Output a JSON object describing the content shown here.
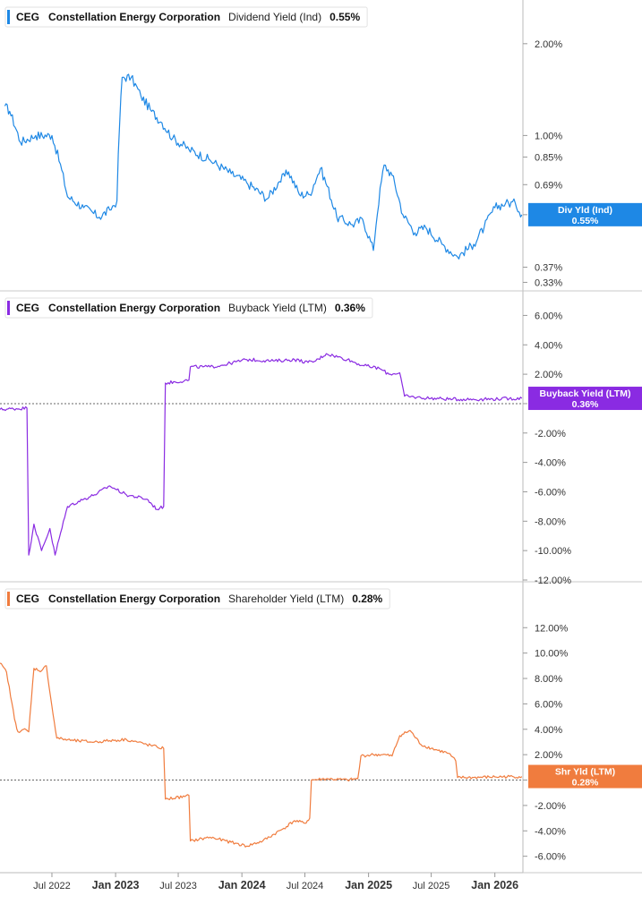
{
  "chart_data": [
    {
      "type": "line",
      "ticker": "CEG",
      "company": "Constellation Energy Corporation",
      "metric": "Dividend Yield (Ind)",
      "value_label": "0.55%",
      "color": "#1e88e5",
      "y_scale": "log",
      "ylim": [
        0.32,
        2.6
      ],
      "ytick_values": [
        2.0,
        1.0,
        0.85,
        0.69,
        0.55,
        0.37,
        0.33
      ],
      "ytick_labels": [
        "2.00%",
        "1.00%",
        "0.85%",
        "0.69%",
        "0.55%",
        "0.37%",
        "0.33%"
      ],
      "badge_lines": [
        "Div Yld (Ind)",
        "0.55%"
      ],
      "zero_line": false,
      "x": [
        "2022-02-15",
        "2022-03-01",
        "2022-04-01",
        "2022-05-15",
        "2022-07-01",
        "2022-08-15",
        "2022-10-01",
        "2022-11-15",
        "2022-12-15",
        "2023-01-05",
        "2023-01-20",
        "2023-02-15",
        "2023-03-15",
        "2023-04-15",
        "2023-05-15",
        "2023-06-15",
        "2023-08-01",
        "2023-10-01",
        "2023-12-01",
        "2024-01-15",
        "2024-03-15",
        "2024-04-15",
        "2024-05-15",
        "2024-06-15",
        "2024-07-15",
        "2024-08-15",
        "2024-10-01",
        "2024-11-15",
        "2024-12-15",
        "2025-01-15",
        "2025-02-15",
        "2025-03-10",
        "2025-04-10",
        "2025-05-15",
        "2025-06-15",
        "2025-08-01",
        "2025-09-15",
        "2025-11-01",
        "2025-12-01",
        "2026-01-01",
        "2026-02-01",
        "2026-03-01",
        "2026-03-20"
      ],
      "values": [
        1.25,
        1.2,
        0.95,
        1.0,
        1.0,
        0.63,
        0.58,
        0.54,
        0.57,
        0.61,
        1.55,
        1.55,
        1.35,
        1.2,
        1.1,
        0.98,
        0.9,
        0.83,
        0.75,
        0.7,
        0.62,
        0.7,
        0.76,
        0.64,
        0.64,
        0.78,
        0.54,
        0.51,
        0.53,
        0.42,
        0.8,
        0.74,
        0.55,
        0.48,
        0.5,
        0.44,
        0.4,
        0.44,
        0.5,
        0.58,
        0.6,
        0.6,
        0.55
      ]
    },
    {
      "type": "line",
      "ticker": "CEG",
      "company": "Constellation Energy Corporation",
      "metric": "Buyback Yield (LTM)",
      "value_label": "0.36%",
      "color": "#8a2be2",
      "y_scale": "linear",
      "ylim": [
        -12.0,
        7.0
      ],
      "ytick_values": [
        6,
        4,
        2,
        0,
        -2,
        -4,
        -6,
        -8,
        -10,
        -12
      ],
      "ytick_labels": [
        "6.00%",
        "4.00%",
        "2.00%",
        "0.00%",
        "-2.00%",
        "-4.00%",
        "-6.00%",
        "-8.00%",
        "-10.00%",
        "-12.00%"
      ],
      "badge_lines": [
        "Buyback Yield (LTM)",
        "0.36%"
      ],
      "zero_line": true,
      "x": [
        "2022-02-01",
        "2022-04-20",
        "2022-04-25",
        "2022-05-10",
        "2022-06-01",
        "2022-06-25",
        "2022-07-10",
        "2022-08-15",
        "2022-10-01",
        "2022-11-01",
        "2022-12-15",
        "2023-02-01",
        "2023-04-01",
        "2023-05-01",
        "2023-05-20",
        "2023-05-25",
        "2023-08-01",
        "2023-08-05",
        "2023-10-01",
        "2023-11-01",
        "2024-01-15",
        "2024-04-01",
        "2024-06-01",
        "2024-07-10",
        "2024-08-01",
        "2024-09-01",
        "2024-11-01",
        "2024-12-15",
        "2025-02-01",
        "2025-03-01",
        "2025-04-01",
        "2025-04-15",
        "2025-06-01",
        "2025-09-01",
        "2025-12-01",
        "2026-03-20"
      ],
      "values": [
        -0.4,
        -0.3,
        -10.3,
        -8.2,
        -10.0,
        -8.5,
        -10.3,
        -7.0,
        -6.5,
        -6.2,
        -5.6,
        -6.2,
        -6.5,
        -7.2,
        -7.0,
        1.4,
        1.6,
        2.5,
        2.5,
        2.6,
        3.0,
        2.9,
        3.0,
        2.8,
        2.9,
        3.4,
        3.0,
        2.6,
        2.4,
        2.0,
        2.1,
        0.5,
        0.4,
        0.3,
        0.3,
        0.36
      ]
    },
    {
      "type": "line",
      "ticker": "CEG",
      "company": "Constellation Energy Corporation",
      "metric": "Shareholder Yield (LTM)",
      "value_label": "0.28%",
      "color": "#f07c3e",
      "y_scale": "linear",
      "ylim": [
        -6.8,
        13.5
      ],
      "ytick_values": [
        12,
        10,
        8,
        6,
        4,
        2,
        0,
        -2,
        -4,
        -6
      ],
      "ytick_labels": [
        "12.00%",
        "10.00%",
        "8.00%",
        "6.00%",
        "4.00%",
        "2.00%",
        "0.00%",
        "-2.00%",
        "-4.00%",
        "-6.00%"
      ],
      "badge_lines": [
        "Shr Yld (LTM)",
        "0.28%"
      ],
      "zero_line": true,
      "x": [
        "2022-02-01",
        "2022-02-20",
        "2022-03-15",
        "2022-03-25",
        "2022-04-10",
        "2022-04-25",
        "2022-05-10",
        "2022-06-01",
        "2022-06-15",
        "2022-07-01",
        "2022-07-15",
        "2022-09-01",
        "2022-11-01",
        "2022-12-15",
        "2023-02-01",
        "2023-04-01",
        "2023-05-01",
        "2023-05-20",
        "2023-05-25",
        "2023-07-20",
        "2023-08-01",
        "2023-08-05",
        "2023-10-01",
        "2023-12-01",
        "2024-01-15",
        "2024-03-01",
        "2024-05-01",
        "2024-06-01",
        "2024-07-01",
        "2024-07-15",
        "2024-07-20",
        "2024-09-01",
        "2024-11-01",
        "2024-12-01",
        "2024-12-10",
        "2025-01-15",
        "2025-02-10",
        "2025-03-10",
        "2025-04-01",
        "2025-05-01",
        "2025-06-01",
        "2025-07-01",
        "2025-08-20",
        "2025-09-10",
        "2025-09-15",
        "2025-11-01",
        "2026-01-01",
        "2026-03-20"
      ],
      "values": [
        9.2,
        8.5,
        4.8,
        3.8,
        4.0,
        3.8,
        8.8,
        8.6,
        9.0,
        5.8,
        3.3,
        3.1,
        3.0,
        3.1,
        3.2,
        2.8,
        2.6,
        2.5,
        -1.5,
        -1.3,
        -1.2,
        -4.8,
        -4.5,
        -4.9,
        -5.2,
        -4.8,
        -3.8,
        -3.2,
        -3.4,
        -3.0,
        0.0,
        0.1,
        0.0,
        0.1,
        1.9,
        2.0,
        2.0,
        1.9,
        3.5,
        3.9,
        2.8,
        2.5,
        2.1,
        1.5,
        0.2,
        0.2,
        0.25,
        0.28
      ]
    }
  ],
  "x_axis": {
    "tick_dates": [
      "2022-07-01",
      "2023-01-01",
      "2023-07-01",
      "2024-01-01",
      "2024-07-01",
      "2025-01-01",
      "2025-07-01",
      "2026-01-01"
    ],
    "tick_labels": [
      "Jul 2022",
      "Jan 2023",
      "Jul 2023",
      "Jan 2024",
      "Jul 2024",
      "Jan 2025",
      "Jul 2025",
      "Jan 2026"
    ],
    "bold": [
      false,
      true,
      false,
      true,
      false,
      true,
      false,
      true
    ],
    "range": [
      "2022-02-01",
      "2026-03-23"
    ]
  }
}
